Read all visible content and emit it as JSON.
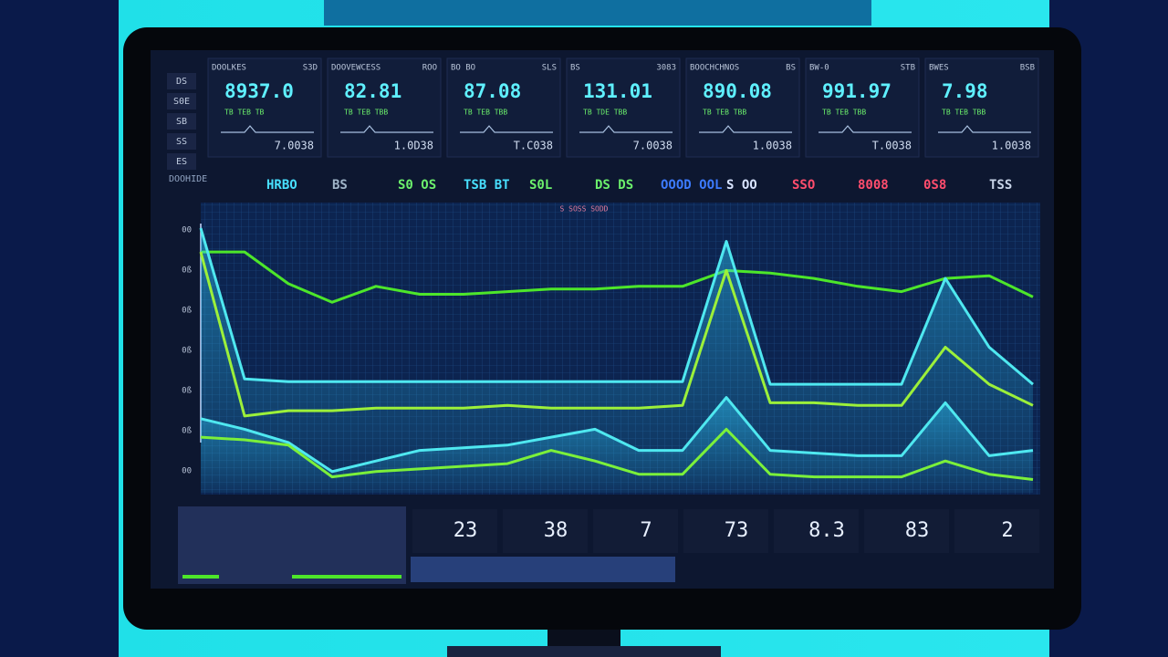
{
  "side_labels": [
    "DS",
    "S0E",
    "SB",
    "SS",
    "ES"
  ],
  "cards": [
    {
      "label": "DOOLKES",
      "tag": "S3D",
      "value": "8937.0",
      "sub": "TB TEB TB",
      "foot": "7.0038"
    },
    {
      "label": "DOOVEWCESS",
      "tag": "ROO",
      "value": "82.81",
      "sub": "TB TEB TBB",
      "foot": "1.0D38"
    },
    {
      "label": "BO BO",
      "tag": "SLS",
      "value": "87.08",
      "sub": "TB TEB TBB",
      "foot": "T.C038"
    },
    {
      "label": "BS",
      "tag": "3083",
      "value": "131.01",
      "sub": "TB TDE TBB",
      "foot": "7.0038"
    },
    {
      "label": "BOOCHCHNOS",
      "tag": "BS",
      "value": "890.08",
      "sub": "TB TEB TBB",
      "foot": "1.0038"
    },
    {
      "label": "BW-0",
      "tag": "STB",
      "value": "991.97",
      "sub": "TB TEB TBB",
      "foot": "T.0038"
    },
    {
      "label": "BWES",
      "tag": "BSB",
      "value": "7.98",
      "sub": "TB TEB TBB",
      "foot": "1.0038"
    }
  ],
  "ticker": {
    "title": "DOOHIDE",
    "items": [
      {
        "text": "HRBO",
        "color": "#48e0ff"
      },
      {
        "text": "BS",
        "color": "#9fb4c8"
      },
      {
        "text": "S0 OS",
        "color": "#6cf06c"
      },
      {
        "text": "TSB BT",
        "color": "#48e0ff"
      },
      {
        "text": "S0L",
        "color": "#6cf06c"
      },
      {
        "text": "DS DS",
        "color": "#6cf06c"
      },
      {
        "text": "OOOD OOL",
        "color": "#3c7bff"
      },
      {
        "text": "S OO",
        "color": "#d8e4ff"
      },
      {
        "text": "SSO",
        "color": "#ff4d6d"
      },
      {
        "text": "8008",
        "color": "#ff4d6d"
      },
      {
        "text": "0S8",
        "color": "#ff4d6d"
      },
      {
        "text": "TSS",
        "color": "#c8d4e8"
      }
    ]
  },
  "chart_data": {
    "type": "line",
    "title": "S SOSS SODD",
    "y_axis_texts": [
      "00",
      "0ß",
      "0ß",
      "0ß",
      "0ß",
      "0ß",
      "00"
    ],
    "categories": [
      null,
      null,
      null,
      null,
      null,
      null,
      null,
      null,
      null,
      null,
      null,
      null,
      null,
      null,
      null,
      null,
      null,
      null,
      null,
      null
    ],
    "ylim": [
      0,
      100
    ],
    "series": [
      {
        "color": "#4de62a",
        "values": [
          91,
          91,
          79,
          72,
          78,
          75,
          75,
          76,
          77,
          77,
          78,
          78,
          84,
          83,
          81,
          78,
          76,
          81,
          82,
          74
        ]
      },
      {
        "color": "#4fe8f0",
        "values": [
          100,
          43,
          42,
          42,
          42,
          42,
          42,
          42,
          42,
          42,
          42,
          42,
          95,
          41,
          41,
          41,
          41,
          81,
          55,
          41
        ]
      },
      {
        "color": "#9cf03a",
        "values": [
          91,
          29,
          31,
          31,
          32,
          32,
          32,
          33,
          32,
          32,
          32,
          33,
          84,
          34,
          34,
          33,
          33,
          55,
          41,
          33
        ]
      },
      {
        "color": "#4fe8f0",
        "values": [
          28,
          24,
          19,
          8,
          12,
          16,
          17,
          18,
          21,
          24,
          16,
          16,
          36,
          16,
          15,
          14,
          14,
          34,
          14,
          16
        ]
      },
      {
        "color": "#7bf03a",
        "values": [
          21,
          20,
          18,
          6,
          8,
          9,
          10,
          11,
          16,
          12,
          7,
          7,
          24,
          7,
          6,
          6,
          6,
          12,
          7,
          5
        ]
      }
    ]
  },
  "stats": [
    "23",
    "38",
    "7",
    "73",
    "8.3",
    "83",
    "2"
  ]
}
